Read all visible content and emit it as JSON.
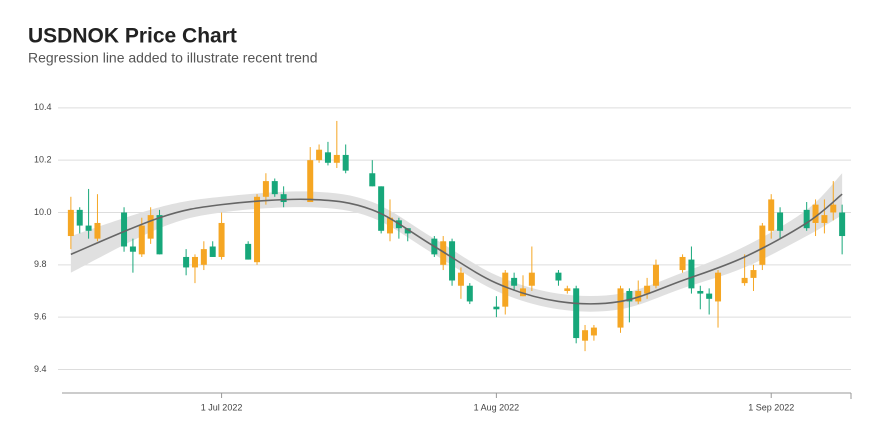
{
  "chart_data": {
    "type": "candlestick",
    "title": "USDNOK Price Chart",
    "subtitle": "Regression line added to illustrate recent trend",
    "x": [
      "2022-06-14",
      "2022-06-15",
      "2022-06-16",
      "2022-06-17",
      "2022-06-20",
      "2022-06-21",
      "2022-06-22",
      "2022-06-23",
      "2022-06-24",
      "2022-06-27",
      "2022-06-28",
      "2022-06-29",
      "2022-06-30",
      "2022-07-01",
      "2022-07-04",
      "2022-07-05",
      "2022-07-06",
      "2022-07-07",
      "2022-07-08",
      "2022-07-11",
      "2022-07-12",
      "2022-07-13",
      "2022-07-14",
      "2022-07-15",
      "2022-07-18",
      "2022-07-19",
      "2022-07-20",
      "2022-07-21",
      "2022-07-22",
      "2022-07-25",
      "2022-07-26",
      "2022-07-27",
      "2022-07-28",
      "2022-07-29",
      "2022-08-01",
      "2022-08-02",
      "2022-08-03",
      "2022-08-04",
      "2022-08-05",
      "2022-08-08",
      "2022-08-09",
      "2022-08-10",
      "2022-08-11",
      "2022-08-12",
      "2022-08-15",
      "2022-08-16",
      "2022-08-17",
      "2022-08-18",
      "2022-08-19",
      "2022-08-22",
      "2022-08-23",
      "2022-08-24",
      "2022-08-25",
      "2022-08-26",
      "2022-08-29",
      "2022-08-30",
      "2022-08-31",
      "2022-09-01",
      "2022-09-02",
      "2022-09-05",
      "2022-09-06",
      "2022-09-07",
      "2022-09-08",
      "2022-09-09"
    ],
    "open": [
      9.91,
      10.01,
      9.95,
      9.9,
      10.0,
      9.87,
      9.84,
      9.9,
      9.99,
      9.83,
      9.79,
      9.8,
      9.87,
      9.83,
      9.88,
      9.81,
      10.06,
      10.12,
      10.07,
      10.04,
      10.2,
      10.23,
      10.19,
      10.22,
      10.15,
      10.1,
      9.92,
      9.97,
      9.94,
      9.9,
      9.8,
      9.89,
      9.72,
      9.72,
      9.64,
      9.64,
      9.75,
      9.68,
      9.72,
      9.77,
      9.7,
      9.71,
      9.51,
      9.53,
      9.56,
      9.7,
      9.66,
      9.69,
      9.72,
      9.78,
      9.82,
      9.7,
      9.69,
      9.66,
      9.73,
      9.75,
      9.8,
      9.93,
      10.0,
      10.01,
      9.96,
      9.96,
      10.0,
      10.0
    ],
    "high": [
      10.06,
      10.02,
      10.09,
      10.07,
      10.02,
      9.9,
      9.98,
      10.02,
      10.01,
      9.86,
      9.84,
      9.89,
      9.89,
      10.0,
      9.89,
      10.07,
      10.15,
      10.13,
      10.1,
      10.25,
      10.26,
      10.27,
      10.35,
      10.26,
      10.2,
      10.1,
      10.05,
      9.98,
      9.94,
      9.91,
      9.91,
      9.9,
      9.79,
      9.73,
      9.68,
      9.78,
      9.77,
      9.76,
      9.87,
      9.78,
      9.72,
      9.72,
      9.57,
      9.57,
      9.72,
      9.71,
      9.74,
      9.75,
      9.82,
      9.84,
      9.87,
      9.72,
      9.71,
      9.78,
      9.84,
      9.8,
      9.96,
      10.07,
      10.02,
      10.04,
      10.05,
      10.05,
      10.12,
      10.03
    ],
    "low": [
      9.86,
      9.92,
      9.9,
      9.89,
      9.85,
      9.77,
      9.83,
      9.88,
      9.84,
      9.76,
      9.73,
      9.78,
      9.83,
      9.82,
      9.82,
      9.8,
      10.03,
      10.06,
      10.02,
      10.04,
      10.19,
      10.18,
      10.17,
      10.15,
      10.1,
      9.92,
      9.89,
      9.9,
      9.89,
      9.83,
      9.78,
      9.72,
      9.67,
      9.65,
      9.6,
      9.61,
      9.7,
      9.68,
      9.7,
      9.72,
      9.69,
      9.5,
      9.47,
      9.51,
      9.54,
      9.58,
      9.65,
      9.67,
      9.71,
      9.77,
      9.69,
      9.63,
      9.61,
      9.56,
      9.72,
      9.7,
      9.78,
      9.9,
      9.9,
      9.93,
      9.91,
      9.92,
      9.97,
      9.84
    ],
    "close": [
      10.01,
      9.95,
      9.93,
      9.96,
      9.87,
      9.85,
      9.95,
      9.99,
      9.84,
      9.79,
      9.83,
      9.86,
      9.83,
      9.96,
      9.82,
      10.06,
      10.12,
      10.07,
      10.04,
      10.2,
      10.24,
      10.19,
      10.22,
      10.16,
      10.1,
      9.93,
      9.98,
      9.94,
      9.92,
      9.84,
      9.89,
      9.74,
      9.77,
      9.66,
      9.63,
      9.77,
      9.72,
      9.71,
      9.77,
      9.74,
      9.71,
      9.52,
      9.55,
      9.56,
      9.71,
      9.66,
      9.7,
      9.72,
      9.8,
      9.83,
      9.71,
      9.69,
      9.67,
      9.77,
      9.75,
      9.78,
      9.95,
      10.05,
      9.93,
      9.94,
      10.03,
      9.99,
      10.03,
      9.91
    ],
    "up_color": "#f5a623",
    "down_color": "#17a77a",
    "regression": {
      "x": [
        "2022-06-14",
        "2022-06-24",
        "2022-07-01",
        "2022-07-11",
        "2022-07-18",
        "2022-07-25",
        "2022-08-01",
        "2022-08-08",
        "2022-08-15",
        "2022-08-22",
        "2022-08-29",
        "2022-09-05",
        "2022-09-09"
      ],
      "values": [
        9.84,
        9.98,
        10.03,
        10.05,
        10.01,
        9.87,
        9.73,
        9.66,
        9.66,
        9.74,
        9.83,
        9.96,
        10.07
      ],
      "lower": [
        9.77,
        9.94,
        10.0,
        10.02,
        9.98,
        9.84,
        9.7,
        9.63,
        9.63,
        9.71,
        9.79,
        9.91,
        9.99
      ],
      "upper": [
        9.91,
        10.02,
        10.06,
        10.08,
        10.04,
        9.9,
        9.76,
        9.69,
        9.69,
        9.77,
        9.87,
        10.01,
        10.15
      ],
      "color": "#666666",
      "band_color": "#e0e0e0"
    },
    "xlim": [
      "2022-06-13",
      "2022-09-10"
    ],
    "xticks": [
      {
        "value": "2022-07-01",
        "label": "1 Jul 2022"
      },
      {
        "value": "2022-08-01",
        "label": "1 Aug 2022"
      },
      {
        "value": "2022-09-01",
        "label": "1 Sep 2022"
      }
    ],
    "ylim": [
      9.31,
      10.43
    ],
    "yticks": [
      9.4,
      9.6,
      9.8,
      {
        "value": 10,
        "label": "10.0"
      },
      10.2,
      10.4
    ],
    "grid": true
  }
}
